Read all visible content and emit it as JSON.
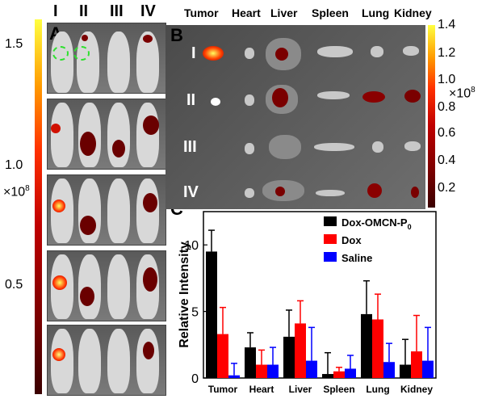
{
  "left_panel": {
    "label": "A",
    "group_labels": [
      "I",
      "II",
      "III",
      "IV"
    ],
    "colorbar": {
      "ticks": [
        "1.5",
        "1.0",
        "0.5"
      ],
      "multiplier": "×10",
      "exponent": "8",
      "range": [
        0.05,
        1.65
      ]
    }
  },
  "right_top_panel": {
    "label": "B",
    "column_labels": [
      "Tumor",
      "Heart",
      "Liver",
      "Spleen",
      "Lung",
      "Kidney"
    ],
    "row_labels": [
      "I",
      "II",
      "III",
      "IV"
    ],
    "colorbar": {
      "ticks": [
        "1.4",
        "1.2",
        "1.0",
        "0.8",
        "0.6",
        "0.4",
        "0.2"
      ],
      "multiplier": "×10",
      "exponent": "8",
      "range": [
        0.1,
        1.4
      ]
    }
  },
  "chart_data": {
    "type": "bar",
    "panel_label": "C",
    "categories": [
      "Tumor",
      "Heart",
      "Liver",
      "Spleen",
      "Lung",
      "Kidney"
    ],
    "series": [
      {
        "name": "Dox-OMCN-P",
        "name_sub": "0",
        "color": "#000000",
        "values": [
          9.5,
          2.3,
          3.1,
          0.3,
          4.8,
          1.0
        ],
        "errors": [
          1.6,
          1.1,
          2.0,
          1.6,
          2.5,
          1.9
        ]
      },
      {
        "name": "Dox",
        "color": "#ff0000",
        "values": [
          3.3,
          1.0,
          4.1,
          0.5,
          4.4,
          2.0
        ],
        "errors": [
          2.0,
          1.1,
          1.7,
          0.3,
          1.9,
          2.7
        ]
      },
      {
        "name": "Saline",
        "color": "#0000ff",
        "values": [
          0.2,
          1.0,
          1.3,
          0.7,
          1.2,
          1.3
        ],
        "errors": [
          0.9,
          1.3,
          2.5,
          1.0,
          1.4,
          2.5
        ]
      }
    ],
    "ylabel": "Relative Intensity",
    "yticks": [
      0,
      5,
      10
    ],
    "ylim": [
      0,
      12.5
    ],
    "legend_position": "top-right"
  }
}
